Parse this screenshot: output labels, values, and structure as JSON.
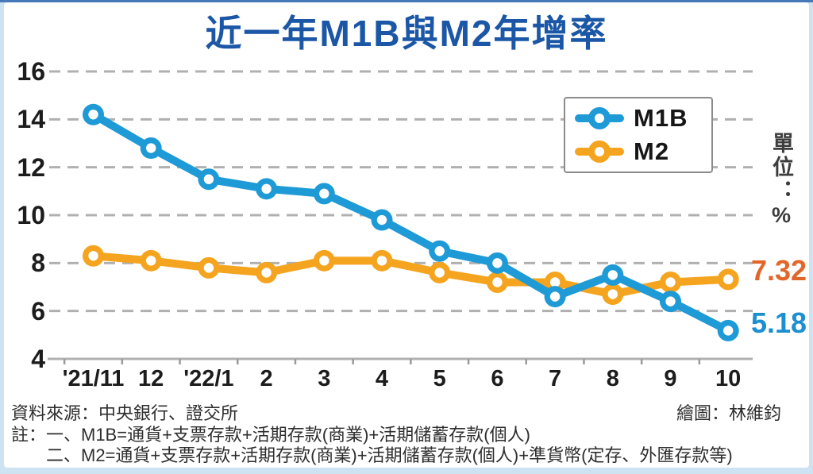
{
  "title": "近一年M1B與M2年增率",
  "chart_data": {
    "type": "line",
    "categories": [
      "'21/11",
      "12",
      "'22/1",
      "2",
      "3",
      "4",
      "5",
      "6",
      "7",
      "8",
      "9",
      "10"
    ],
    "series": [
      {
        "name": "M1B",
        "color": "#1E9AD6",
        "values": [
          14.2,
          12.8,
          11.5,
          11.1,
          10.9,
          9.8,
          8.5,
          8.0,
          6.6,
          7.5,
          6.4,
          5.18
        ],
        "end_label": "5.18",
        "end_label_color": "#1B8FD0"
      },
      {
        "name": "M2",
        "color": "#F5A41F",
        "values": [
          8.3,
          8.1,
          7.8,
          7.6,
          8.1,
          8.1,
          7.6,
          7.2,
          7.2,
          6.7,
          7.2,
          7.32
        ],
        "end_label": "7.32",
        "end_label_color": "#E2662A"
      }
    ],
    "ylim": [
      4,
      16
    ],
    "yticks": [
      16,
      14,
      12,
      10,
      8,
      6,
      4
    ],
    "unit_label": "單位：%",
    "grid": "dashed-horizontal",
    "legend_position": "top-right"
  },
  "footer": {
    "source": "資料來源：中央銀行、證交所",
    "credit": "繪圖：林維鈞",
    "note_line1": "註：一、M1B=通貨+支票存款+活期存款(商業)+活期儲蓄存款(個人)",
    "note_line2": "二、M2=通貨+支票存款+活期存款(商業)+活期儲蓄存款(個人)+準貨幣(定存、外匯存款等)"
  },
  "colors": {
    "title_blue": "#1B57A6",
    "frame_blue": "#CDE3F2",
    "top_accent": "#4579B9",
    "gridline": "#B0B0B0",
    "axis": "#B0B0B0"
  }
}
